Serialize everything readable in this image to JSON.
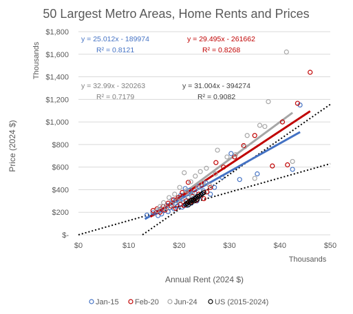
{
  "chart_data": {
    "type": "scatter",
    "title": "50 Largest Metro Areas, Home Rents and Prices",
    "xlabel": "Annual Rent (2024 $)",
    "ylabel": "Price (2024 $)",
    "x_units_label": "Thousands",
    "y_units_label": "Thousands",
    "xlim": [
      0,
      50
    ],
    "ylim": [
      0,
      1800
    ],
    "x_ticks": [
      0,
      10,
      20,
      30,
      40,
      50
    ],
    "x_tick_labels": [
      "$0",
      "$10",
      "$20",
      "$30",
      "$40",
      "$50"
    ],
    "y_ticks": [
      0,
      200,
      400,
      600,
      800,
      1000,
      1200,
      1400,
      1600,
      1800
    ],
    "y_tick_labels": [
      "$-",
      "$200",
      "$400",
      "$600",
      "$800",
      "$1,000",
      "$1,200",
      "$1,400",
      "$1,600",
      "$1,800"
    ],
    "grid": true,
    "legend_position": "bottom",
    "series": [
      {
        "name": "Jan-15",
        "color": "#4472c4",
        "points": [
          [
            13.6,
            175
          ],
          [
            14.8,
            195
          ],
          [
            15.5,
            200
          ],
          [
            15.8,
            170
          ],
          [
            16.2,
            225
          ],
          [
            16.5,
            185
          ],
          [
            17.0,
            215
          ],
          [
            17.5,
            260
          ],
          [
            17.8,
            205
          ],
          [
            18.2,
            240
          ],
          [
            18.6,
            310
          ],
          [
            19.0,
            230
          ],
          [
            19.3,
            280
          ],
          [
            19.7,
            255
          ],
          [
            20.0,
            300
          ],
          [
            20.3,
            350
          ],
          [
            20.6,
            245
          ],
          [
            20.9,
            290
          ],
          [
            21.2,
            410
          ],
          [
            21.5,
            260
          ],
          [
            21.8,
            330
          ],
          [
            22.1,
            395
          ],
          [
            22.4,
            280
          ],
          [
            22.8,
            320
          ],
          [
            23.1,
            370
          ],
          [
            23.5,
            300
          ],
          [
            23.9,
            430
          ],
          [
            24.3,
            340
          ],
          [
            24.8,
            390
          ],
          [
            25.3,
            460
          ],
          [
            26.2,
            360
          ],
          [
            27.0,
            420
          ],
          [
            28.5,
            510
          ],
          [
            30.3,
            720
          ],
          [
            32.0,
            490
          ],
          [
            35.5,
            540
          ],
          [
            42.5,
            580
          ],
          [
            44.0,
            1150
          ]
        ],
        "trendline": {
          "slope": 25.012,
          "intercept": -189974,
          "x_range": [
            13.2,
            44.0
          ],
          "equation": "y = 25.012x - 189974",
          "r2": "R² = 0.8121"
        }
      },
      {
        "name": "Feb-20",
        "color": "#c00000",
        "points": [
          [
            14.8,
            215
          ],
          [
            15.6,
            230
          ],
          [
            16.2,
            200
          ],
          [
            16.8,
            250
          ],
          [
            17.2,
            220
          ],
          [
            17.8,
            280
          ],
          [
            18.4,
            255
          ],
          [
            18.9,
            310
          ],
          [
            19.3,
            235
          ],
          [
            19.8,
            330
          ],
          [
            20.2,
            270
          ],
          [
            20.6,
            375
          ],
          [
            21.0,
            260
          ],
          [
            21.4,
            300
          ],
          [
            21.8,
            465
          ],
          [
            22.2,
            285
          ],
          [
            22.6,
            340
          ],
          [
            23.0,
            400
          ],
          [
            23.4,
            305
          ],
          [
            23.9,
            360
          ],
          [
            24.4,
            440
          ],
          [
            24.9,
            320
          ],
          [
            25.5,
            380
          ],
          [
            26.2,
            420
          ],
          [
            27.3,
            640
          ],
          [
            28.8,
            600
          ],
          [
            31.0,
            690
          ],
          [
            32.8,
            790
          ],
          [
            35.0,
            880
          ],
          [
            38.5,
            610
          ],
          [
            40.5,
            1000
          ],
          [
            41.5,
            620
          ],
          [
            43.5,
            1165
          ],
          [
            46.0,
            1440
          ]
        ],
        "trendline": {
          "slope": 29.495,
          "intercept": -261662,
          "x_range": [
            14.3,
            46.0
          ],
          "equation": "y = 29.495x - 261662",
          "r2": "R² = 0.8268"
        }
      },
      {
        "name": "Jun-24",
        "color": "#a6a6a6",
        "points": [
          [
            15.6,
            215
          ],
          [
            16.2,
            250
          ],
          [
            16.9,
            285
          ],
          [
            17.5,
            240
          ],
          [
            18.0,
            330
          ],
          [
            18.6,
            270
          ],
          [
            19.1,
            360
          ],
          [
            19.6,
            300
          ],
          [
            20.1,
            420
          ],
          [
            20.5,
            310
          ],
          [
            21.0,
            550
          ],
          [
            21.4,
            390
          ],
          [
            21.8,
            340
          ],
          [
            22.3,
            470
          ],
          [
            22.7,
            360
          ],
          [
            23.2,
            520
          ],
          [
            23.7,
            420
          ],
          [
            24.2,
            560
          ],
          [
            24.8,
            460
          ],
          [
            25.4,
            590
          ],
          [
            26.0,
            440
          ],
          [
            27.2,
            540
          ],
          [
            27.6,
            750
          ],
          [
            29.5,
            690
          ],
          [
            31.2,
            710
          ],
          [
            33.0,
            780
          ],
          [
            33.5,
            880
          ],
          [
            35.0,
            500
          ],
          [
            36.0,
            970
          ],
          [
            37.0,
            960
          ],
          [
            37.7,
            1180
          ],
          [
            41.3,
            1620
          ],
          [
            42.5,
            650
          ]
        ],
        "trendline": {
          "slope": 32.99,
          "intercept": -320263,
          "x_range": [
            14.8,
            42.5
          ],
          "equation": "y = 32.99x - 320263",
          "r2": "R² = 0.7179"
        }
      },
      {
        "name": "US (2015-2024)",
        "color": "#000000",
        "points": [
          [
            21.3,
            270
          ],
          [
            21.6,
            280
          ],
          [
            21.9,
            290
          ],
          [
            22.2,
            300
          ],
          [
            22.5,
            305
          ],
          [
            22.8,
            310
          ],
          [
            23.1,
            320
          ],
          [
            23.4,
            330
          ],
          [
            23.7,
            340
          ],
          [
            24.0,
            345
          ],
          [
            24.3,
            355
          ],
          [
            24.6,
            365
          ],
          [
            24.9,
            375
          ],
          [
            21.8,
            265
          ],
          [
            22.4,
            285
          ],
          [
            23.0,
            300
          ],
          [
            23.6,
            315
          ]
        ],
        "trendline": {
          "slope": 31.004,
          "intercept": -394274,
          "x_range": [
            0,
            50
          ],
          "equation": "y = 31.004x - 394274",
          "r2": "R² = 0.9082",
          "style": "dotted"
        }
      }
    ],
    "extra_trendlines": [
      {
        "style": "dotted",
        "color": "#000000",
        "x_range": [
          0,
          50
        ],
        "y_range": [
          0,
          630
        ]
      }
    ]
  }
}
